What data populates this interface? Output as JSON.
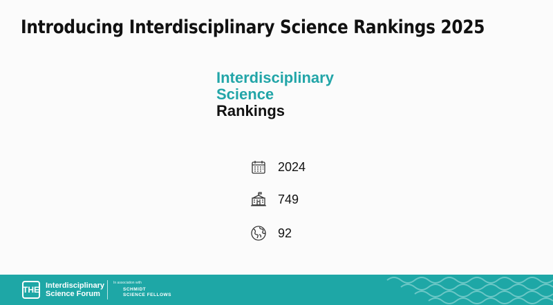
{
  "header": {
    "title": "Introducing Interdisciplinary Science Rankings 2025"
  },
  "logo": {
    "line1": "Interdisciplinary",
    "line2": "Science",
    "line3": "Rankings"
  },
  "stats": [
    {
      "value": 2024
    },
    {
      "value": 749
    },
    {
      "value": 92
    }
  ],
  "footer": {
    "badge": "THE",
    "line1": "Interdisciplinary",
    "line2": "Science Forum",
    "association": "In association with",
    "partner1": "SCHMIDT",
    "partner2": "SCIENCE FELLOWS"
  }
}
